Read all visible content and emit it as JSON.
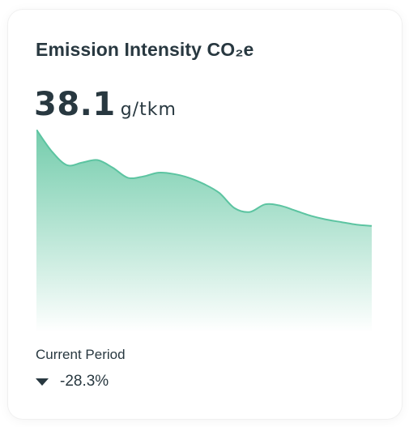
{
  "card": {
    "title": "Emission Intensity CO₂e",
    "value": "38.1",
    "unit": "g/tkm",
    "period_label": "Current Period",
    "change": "-28.3%",
    "change_icon": "triangle-down-icon"
  },
  "chart_data": {
    "type": "area",
    "title": "",
    "xlabel": "",
    "ylabel": "",
    "x": [
      0,
      1,
      2,
      3,
      4,
      5,
      6,
      7,
      8,
      9,
      10,
      11,
      12,
      13,
      14,
      15,
      16,
      17,
      18,
      19,
      20,
      21,
      22
    ],
    "y": [
      100,
      83,
      72,
      74,
      76,
      70,
      62,
      63,
      66,
      65,
      62,
      57,
      50,
      38,
      35,
      41,
      40,
      36,
      32,
      29,
      27,
      25,
      24
    ],
    "xlim": [
      0,
      22
    ],
    "ylim": [
      -60,
      100
    ],
    "grid": false,
    "line_color": "#5cc4a1",
    "fill_color_top": "#6dcaa8",
    "fill_color_bottom": "#ffffff"
  }
}
